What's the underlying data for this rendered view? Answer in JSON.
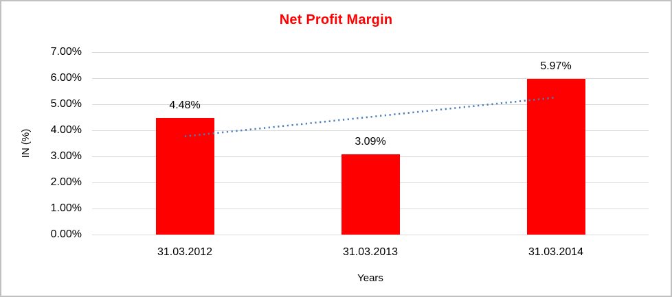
{
  "chart_data": {
    "type": "bar",
    "title": "Net Profit Margin",
    "title_color": "#ff0000",
    "categories": [
      "31.03.2012",
      "31.03.2013",
      "31.03.2014"
    ],
    "values": [
      4.48,
      3.09,
      5.97
    ],
    "value_labels": [
      "4.48%",
      "3.09%",
      "5.97%"
    ],
    "xlabel": "Years",
    "ylabel": "IN (%)",
    "ylim": [
      0,
      7
    ],
    "ytick_step": 1,
    "ytick_labels": [
      "0.00%",
      "1.00%",
      "2.00%",
      "3.00%",
      "4.00%",
      "5.00%",
      "6.00%",
      "7.00%"
    ],
    "grid": true,
    "gridline_color": "#d9d9d9",
    "legend": "none",
    "bar_color": "#ff0000",
    "trendline": {
      "style": "dotted",
      "color": "#4a7ebb",
      "start_value": 3.77,
      "end_value": 5.26
    }
  }
}
